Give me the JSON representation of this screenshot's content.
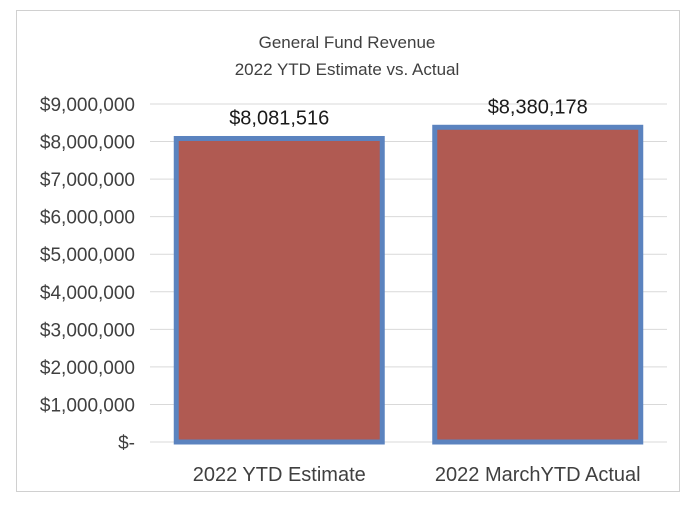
{
  "chart_data": {
    "type": "bar",
    "title": [
      "General Fund Revenue",
      "2022 YTD Estimate vs. Actual"
    ],
    "categories": [
      "2022 YTD Estimate",
      "2022 MarchYTD Actual"
    ],
    "values": [
      8081516,
      8380178
    ],
    "value_labels": [
      "$8,081,516",
      "$8,380,178"
    ],
    "ylim": [
      0,
      9000000
    ],
    "yticks": [
      0,
      1000000,
      2000000,
      3000000,
      4000000,
      5000000,
      6000000,
      7000000,
      8000000,
      9000000
    ],
    "ytick_labels": [
      "$-",
      "$1,000,000",
      "$2,000,000",
      "$3,000,000",
      "$4,000,000",
      "$5,000,000",
      "$6,000,000",
      "$7,000,000",
      "$8,000,000",
      "$9,000,000"
    ],
    "grid": true,
    "legend": false,
    "colors": {
      "bar_fill": "#b05a52",
      "bar_border": "#5b83bf",
      "gridline": "#d9d9d9",
      "text": "#404040"
    }
  }
}
